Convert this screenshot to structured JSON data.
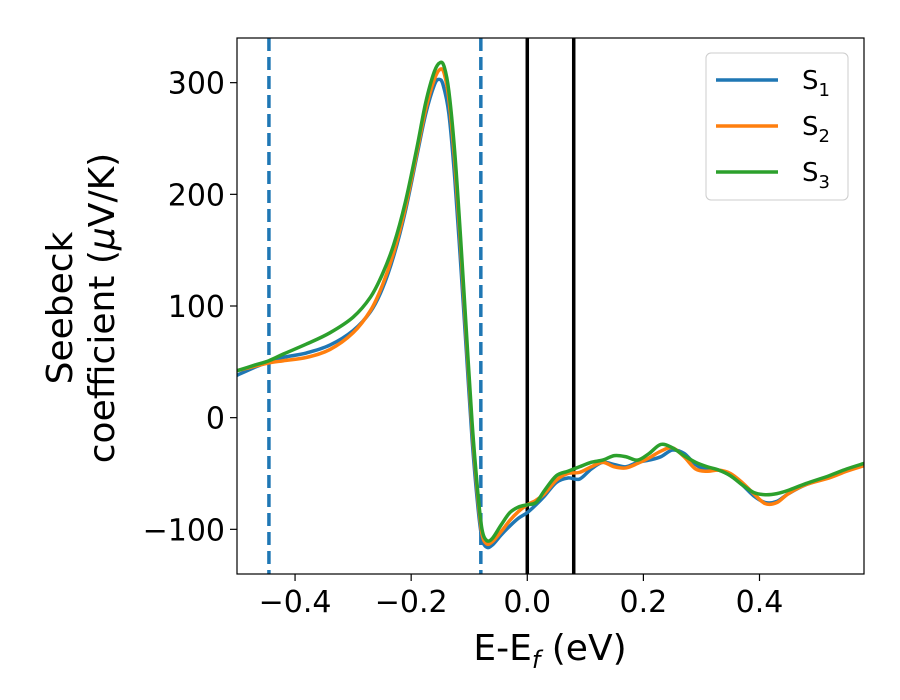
{
  "chart_data": {
    "type": "line",
    "xlabel": "E-E",
    "xlabel_sub": "f",
    "xlabel_unit": " (eV)",
    "ylabel_line1": "Seebeck",
    "ylabel_line2": "coefficient  (",
    "ylabel_mu": "μ",
    "ylabel_unit": "V/K)",
    "xlim": [
      -0.5,
      0.58
    ],
    "ylim": [
      -140,
      340
    ],
    "xticks": [
      -0.4,
      -0.2,
      0.0,
      0.2,
      0.4
    ],
    "xtick_labels": [
      "−0.4",
      "−0.2",
      "0.0",
      "0.2",
      "0.4"
    ],
    "yticks": [
      -100,
      0,
      100,
      200,
      300
    ],
    "ytick_labels": [
      "−100",
      "0",
      "100",
      "200",
      "300"
    ],
    "legend_position": "top-right",
    "series": [
      {
        "name": "S",
        "sub": "1",
        "color": "#1f77b4",
        "points": [
          [
            -0.5,
            38
          ],
          [
            -0.47,
            45
          ],
          [
            -0.445,
            50
          ],
          [
            -0.42,
            54
          ],
          [
            -0.38,
            58
          ],
          [
            -0.34,
            65
          ],
          [
            -0.3,
            78
          ],
          [
            -0.27,
            95
          ],
          [
            -0.25,
            115
          ],
          [
            -0.23,
            145
          ],
          [
            -0.21,
            185
          ],
          [
            -0.19,
            235
          ],
          [
            -0.175,
            272
          ],
          [
            -0.16,
            298
          ],
          [
            -0.152,
            303
          ],
          [
            -0.145,
            298
          ],
          [
            -0.135,
            272
          ],
          [
            -0.125,
            215
          ],
          [
            -0.115,
            140
          ],
          [
            -0.105,
            60
          ],
          [
            -0.095,
            -20
          ],
          [
            -0.085,
            -80
          ],
          [
            -0.078,
            -108
          ],
          [
            -0.07,
            -116
          ],
          [
            -0.06,
            -114
          ],
          [
            -0.045,
            -105
          ],
          [
            -0.03,
            -97
          ],
          [
            -0.015,
            -90
          ],
          [
            0.0,
            -85
          ],
          [
            0.015,
            -78
          ],
          [
            0.03,
            -70
          ],
          [
            0.05,
            -58
          ],
          [
            0.07,
            -54
          ],
          [
            0.09,
            -55
          ],
          [
            0.11,
            -46
          ],
          [
            0.13,
            -40
          ],
          [
            0.15,
            -42
          ],
          [
            0.17,
            -44
          ],
          [
            0.19,
            -40
          ],
          [
            0.21,
            -38
          ],
          [
            0.23,
            -35
          ],
          [
            0.25,
            -29
          ],
          [
            0.27,
            -32
          ],
          [
            0.29,
            -42
          ],
          [
            0.31,
            -47
          ],
          [
            0.33,
            -47
          ],
          [
            0.35,
            -52
          ],
          [
            0.37,
            -60
          ],
          [
            0.39,
            -70
          ],
          [
            0.41,
            -76
          ],
          [
            0.43,
            -75
          ],
          [
            0.45,
            -68
          ],
          [
            0.48,
            -60
          ],
          [
            0.52,
            -53
          ],
          [
            0.55,
            -47
          ],
          [
            0.58,
            -42
          ]
        ]
      },
      {
        "name": "S",
        "sub": "2",
        "color": "#ff7f0e",
        "points": [
          [
            -0.5,
            42
          ],
          [
            -0.47,
            46
          ],
          [
            -0.445,
            49
          ],
          [
            -0.42,
            51
          ],
          [
            -0.38,
            54
          ],
          [
            -0.34,
            61
          ],
          [
            -0.3,
            76
          ],
          [
            -0.27,
            96
          ],
          [
            -0.25,
            118
          ],
          [
            -0.23,
            148
          ],
          [
            -0.21,
            188
          ],
          [
            -0.19,
            238
          ],
          [
            -0.175,
            276
          ],
          [
            -0.16,
            303
          ],
          [
            -0.15,
            312
          ],
          [
            -0.143,
            308
          ],
          [
            -0.135,
            285
          ],
          [
            -0.125,
            230
          ],
          [
            -0.115,
            155
          ],
          [
            -0.105,
            72
          ],
          [
            -0.095,
            -10
          ],
          [
            -0.085,
            -72
          ],
          [
            -0.078,
            -104
          ],
          [
            -0.07,
            -113
          ],
          [
            -0.06,
            -111
          ],
          [
            -0.045,
            -102
          ],
          [
            -0.03,
            -92
          ],
          [
            -0.015,
            -84
          ],
          [
            0.0,
            -78
          ],
          [
            0.015,
            -74
          ],
          [
            0.03,
            -68
          ],
          [
            0.05,
            -56
          ],
          [
            0.07,
            -50
          ],
          [
            0.09,
            -49
          ],
          [
            0.11,
            -44
          ],
          [
            0.13,
            -40
          ],
          [
            0.15,
            -44
          ],
          [
            0.17,
            -45
          ],
          [
            0.19,
            -41
          ],
          [
            0.21,
            -36
          ],
          [
            0.23,
            -30
          ],
          [
            0.25,
            -27
          ],
          [
            0.27,
            -35
          ],
          [
            0.29,
            -46
          ],
          [
            0.31,
            -48
          ],
          [
            0.33,
            -47
          ],
          [
            0.35,
            -50
          ],
          [
            0.37,
            -58
          ],
          [
            0.39,
            -68
          ],
          [
            0.41,
            -77
          ],
          [
            0.43,
            -76
          ],
          [
            0.45,
            -68
          ],
          [
            0.48,
            -60
          ],
          [
            0.52,
            -54
          ],
          [
            0.55,
            -48
          ],
          [
            0.58,
            -43
          ]
        ]
      },
      {
        "name": "S",
        "sub": "3",
        "color": "#2ca02c",
        "points": [
          [
            -0.5,
            42
          ],
          [
            -0.47,
            47
          ],
          [
            -0.445,
            51
          ],
          [
            -0.42,
            57
          ],
          [
            -0.38,
            66
          ],
          [
            -0.34,
            76
          ],
          [
            -0.3,
            90
          ],
          [
            -0.27,
            108
          ],
          [
            -0.25,
            128
          ],
          [
            -0.23,
            155
          ],
          [
            -0.21,
            193
          ],
          [
            -0.19,
            242
          ],
          [
            -0.175,
            282
          ],
          [
            -0.16,
            310
          ],
          [
            -0.15,
            318
          ],
          [
            -0.143,
            314
          ],
          [
            -0.135,
            292
          ],
          [
            -0.125,
            238
          ],
          [
            -0.115,
            162
          ],
          [
            -0.105,
            78
          ],
          [
            -0.095,
            -5
          ],
          [
            -0.085,
            -68
          ],
          [
            -0.078,
            -100
          ],
          [
            -0.07,
            -110
          ],
          [
            -0.06,
            -108
          ],
          [
            -0.045,
            -96
          ],
          [
            -0.03,
            -85
          ],
          [
            -0.015,
            -80
          ],
          [
            0.0,
            -78
          ],
          [
            0.015,
            -76
          ],
          [
            0.03,
            -65
          ],
          [
            0.05,
            -52
          ],
          [
            0.07,
            -48
          ],
          [
            0.09,
            -44
          ],
          [
            0.11,
            -40
          ],
          [
            0.13,
            -38
          ],
          [
            0.15,
            -34
          ],
          [
            0.17,
            -35
          ],
          [
            0.19,
            -38
          ],
          [
            0.21,
            -32
          ],
          [
            0.23,
            -24
          ],
          [
            0.25,
            -27
          ],
          [
            0.27,
            -34
          ],
          [
            0.29,
            -40
          ],
          [
            0.31,
            -44
          ],
          [
            0.33,
            -47
          ],
          [
            0.35,
            -52
          ],
          [
            0.37,
            -60
          ],
          [
            0.39,
            -67
          ],
          [
            0.41,
            -69
          ],
          [
            0.43,
            -68
          ],
          [
            0.45,
            -65
          ],
          [
            0.48,
            -59
          ],
          [
            0.52,
            -52
          ],
          [
            0.55,
            -46
          ],
          [
            0.58,
            -41
          ]
        ]
      }
    ],
    "vlines": [
      {
        "x": -0.445,
        "style": "dashed",
        "color": "#1f77b4"
      },
      {
        "x": -0.08,
        "style": "dashed",
        "color": "#1f77b4"
      },
      {
        "x": 0.0,
        "style": "solid",
        "color": "#000000"
      },
      {
        "x": 0.08,
        "style": "solid",
        "color": "#000000"
      }
    ]
  }
}
